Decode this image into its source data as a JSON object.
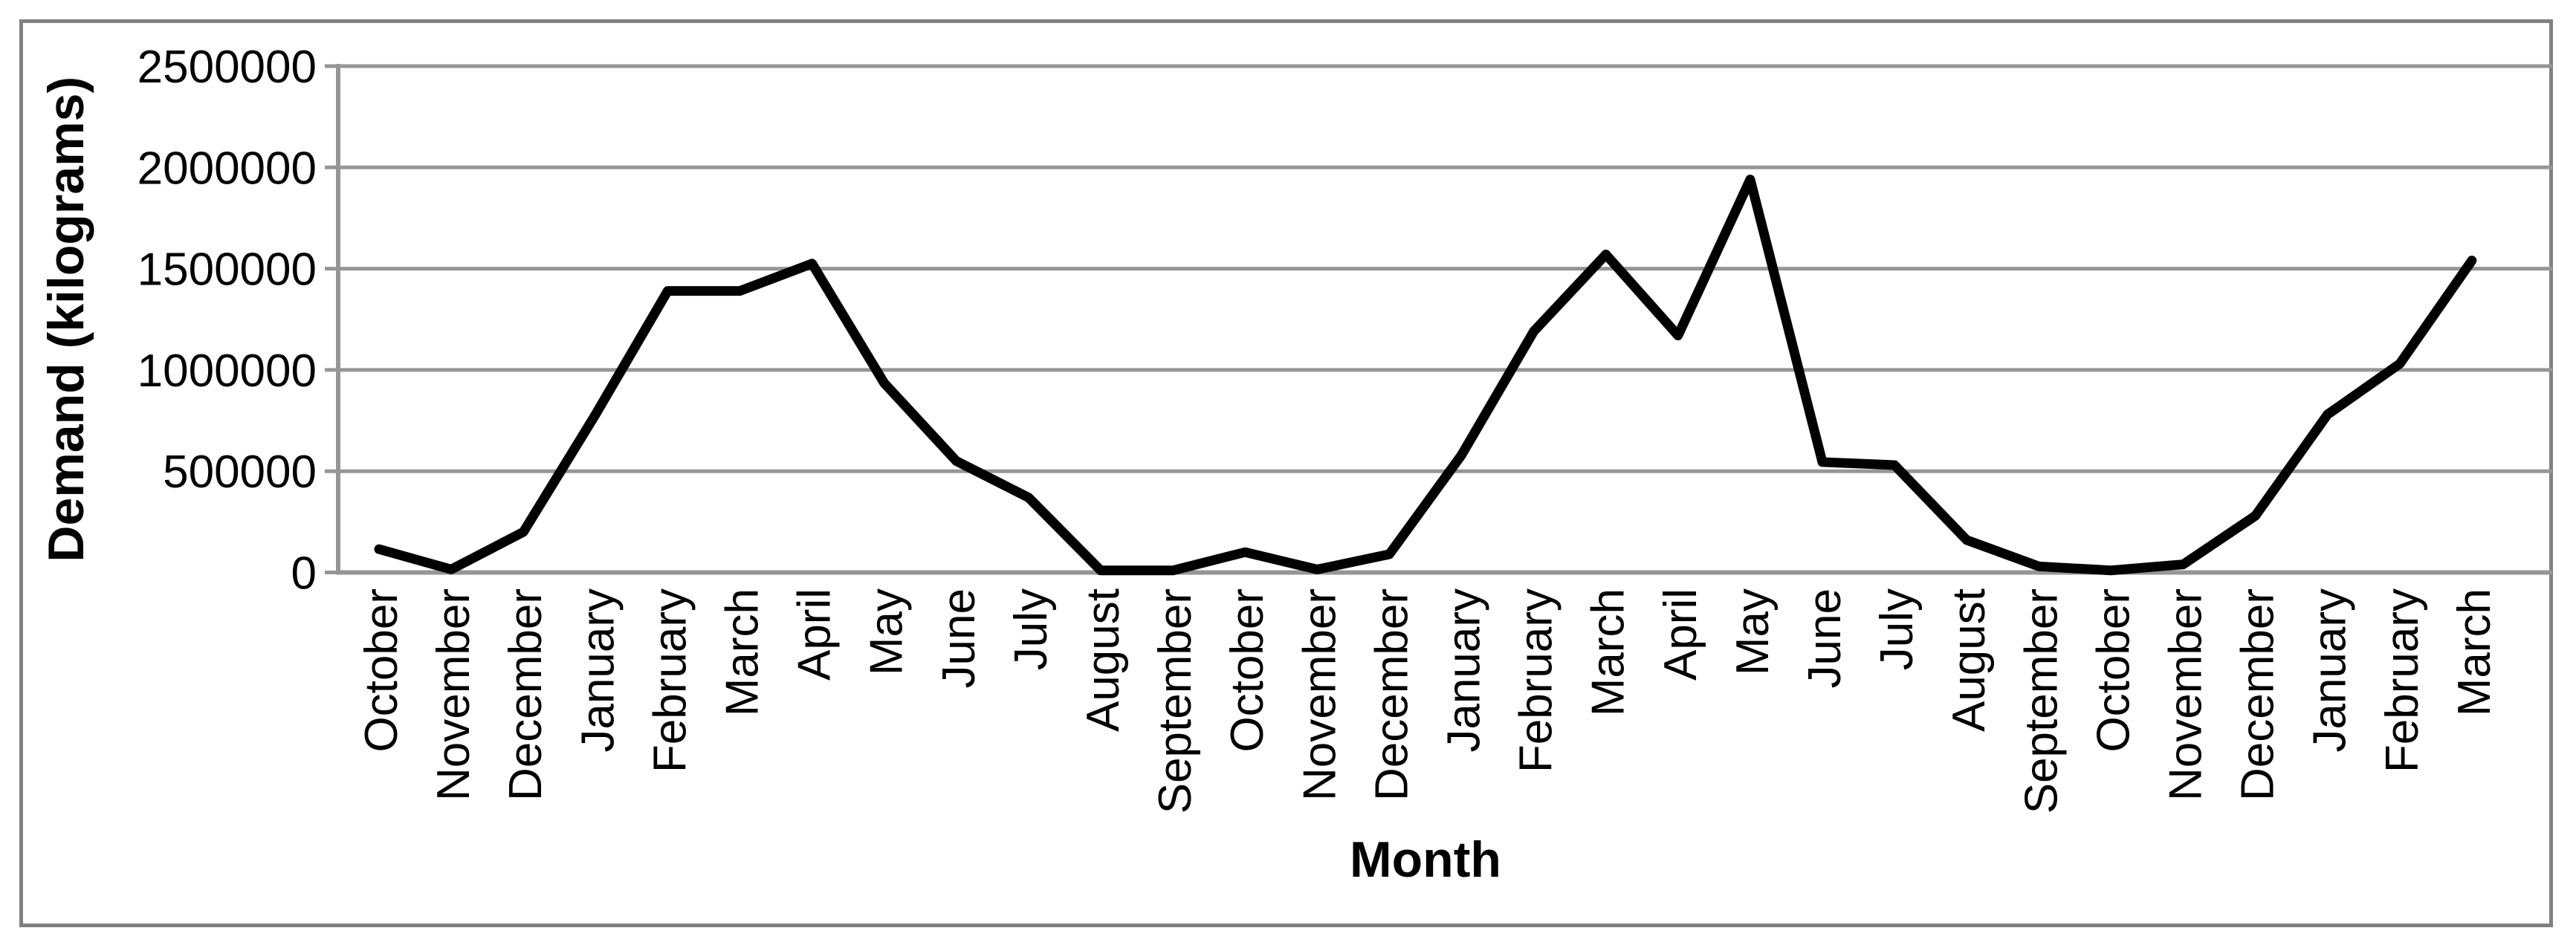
{
  "chart_data": {
    "type": "line",
    "title": "",
    "xlabel": "Month",
    "ylabel": "Demand (kilograms)",
    "categories": [
      "October",
      "November",
      "December",
      "January",
      "February",
      "March",
      "April",
      "May",
      "June",
      "July",
      "August",
      "September",
      "October",
      "November",
      "December",
      "January",
      "February",
      "March",
      "April",
      "May",
      "June",
      "July",
      "August",
      "September",
      "October",
      "November",
      "December",
      "January",
      "February",
      "March"
    ],
    "values": [
      115000,
      15000,
      200000,
      780000,
      1390000,
      1390000,
      1525000,
      935000,
      550000,
      370000,
      10000,
      10000,
      100000,
      15000,
      90000,
      580000,
      1190000,
      1570000,
      1170000,
      1940000,
      545000,
      530000,
      160000,
      30000,
      10000,
      40000,
      280000,
      780000,
      1030000,
      1540000
    ],
    "series_name": "Demand",
    "ylim": [
      0,
      2500000
    ],
    "ytick_interval": 500000,
    "ytick_labels": [
      "0",
      "500000",
      "1000000",
      "1500000",
      "2000000",
      "2500000"
    ],
    "grid": "horizontal-on",
    "legend": "none",
    "line_color": "#000000",
    "gridline_color": "#969696",
    "axis_color": "#969696",
    "frame_border_color": "#808080",
    "background_color": "#ffffff",
    "text_color": "#000000"
  }
}
